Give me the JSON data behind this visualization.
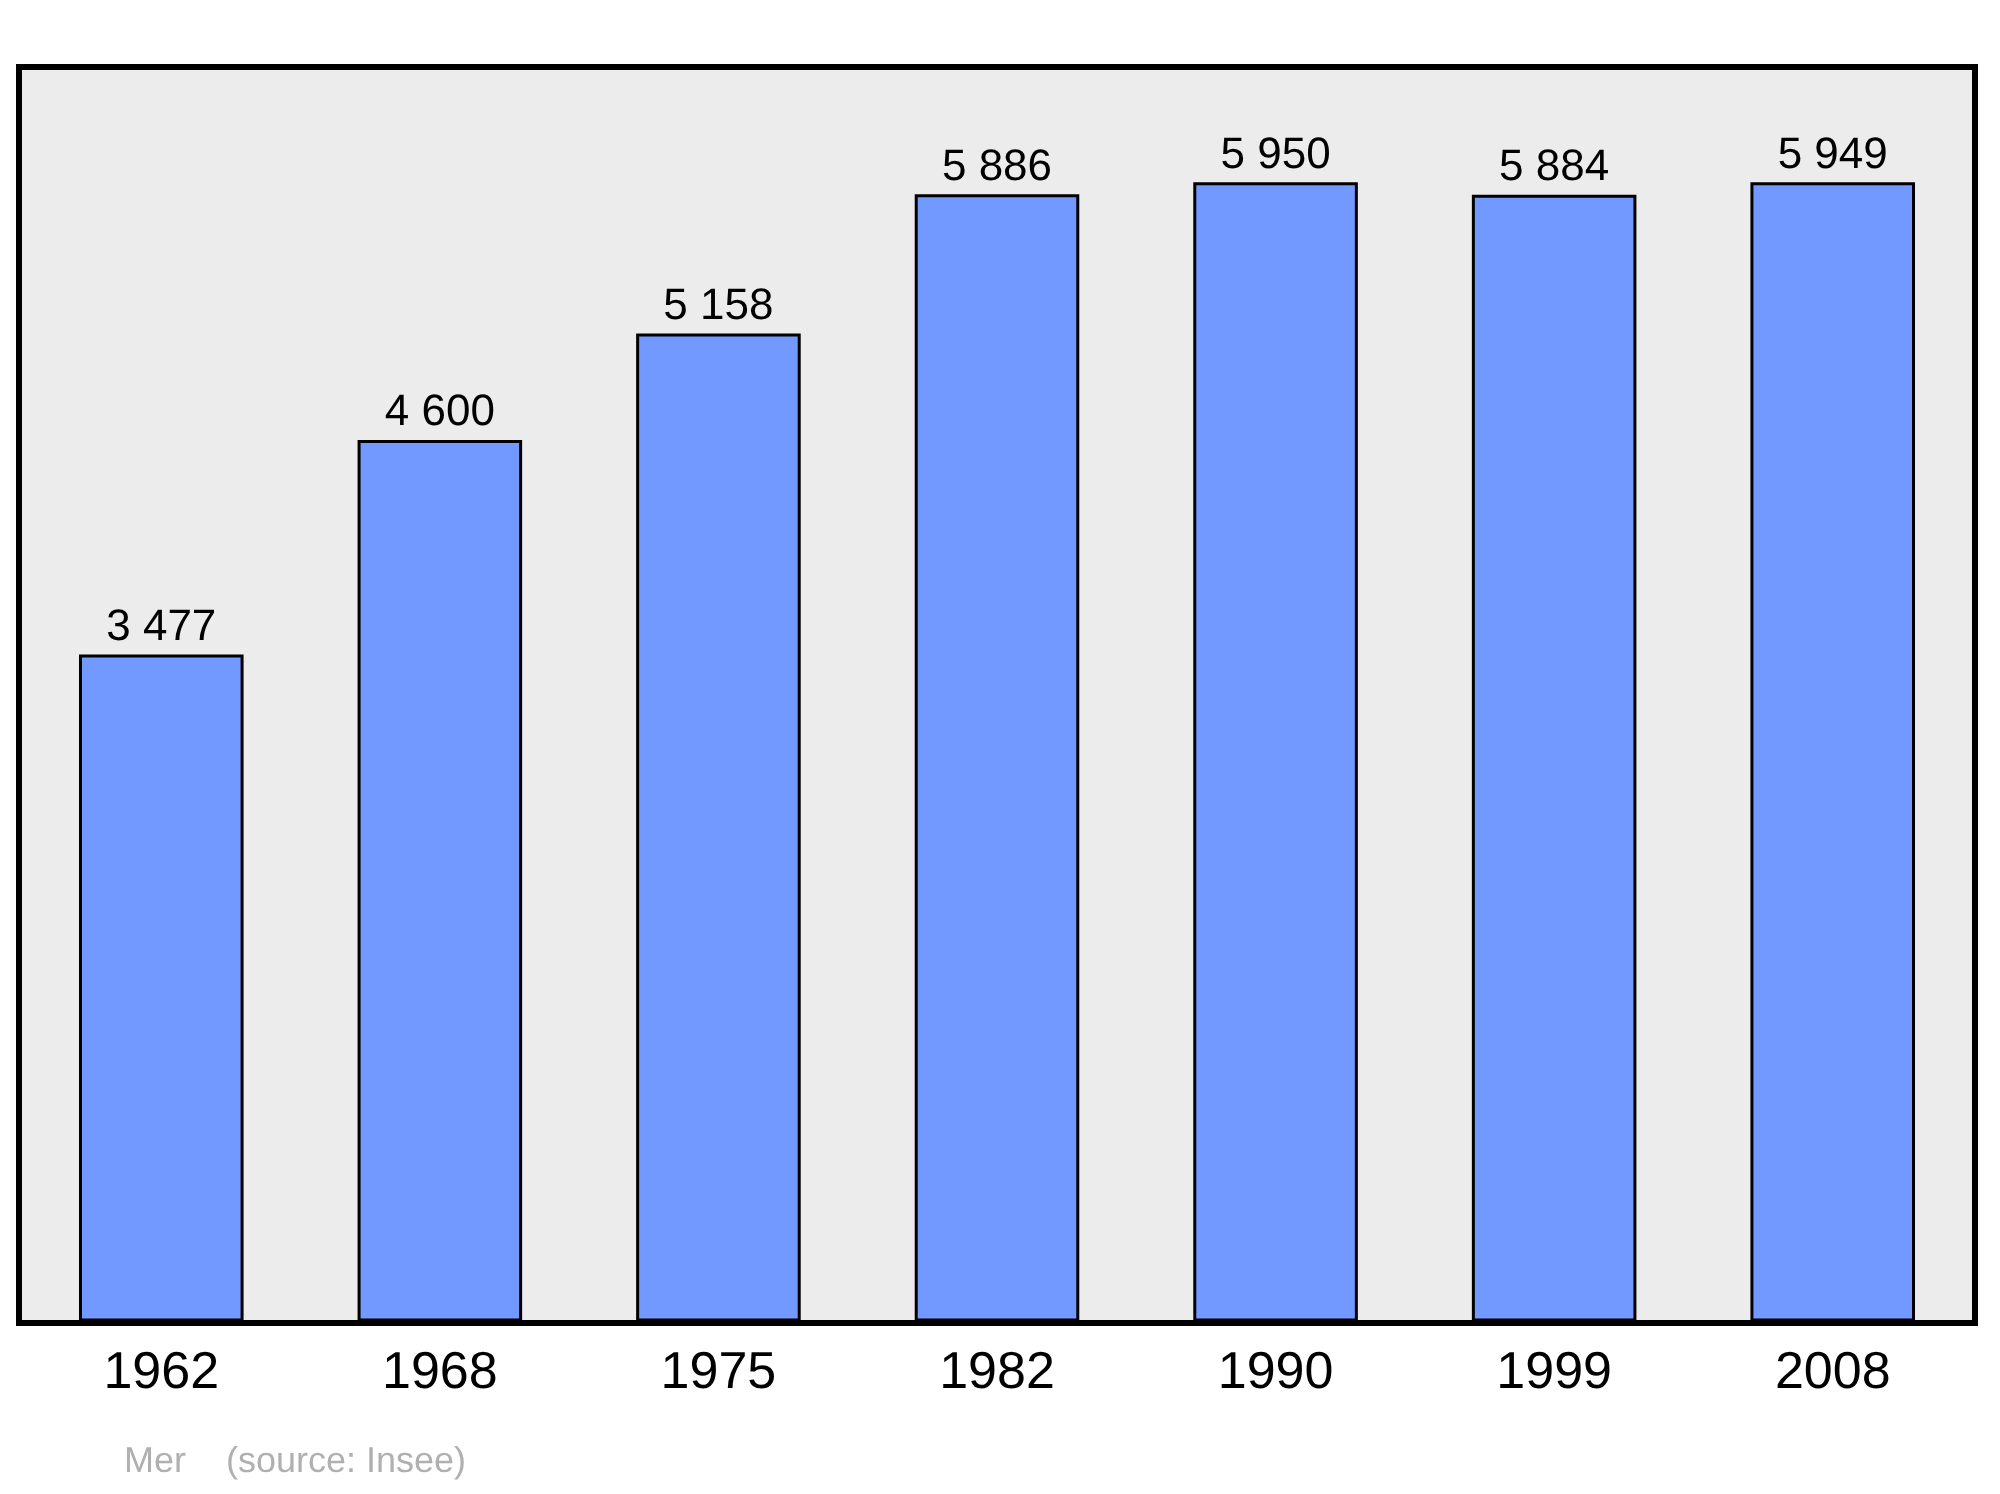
{
  "chart_data": {
    "type": "bar",
    "categories": [
      "1962",
      "1968",
      "1975",
      "1982",
      "1990",
      "1999",
      "2008"
    ],
    "values": [
      3477,
      4600,
      5158,
      5886,
      5950,
      5884,
      5949
    ],
    "value_labels": [
      "3 477",
      "4 600",
      "5 158",
      "5 886",
      "5 950",
      "5 884",
      "5 949"
    ],
    "color": "#7299ff",
    "annotations": [
      "Mer    (source: Insee)"
    ],
    "grid": false
  }
}
